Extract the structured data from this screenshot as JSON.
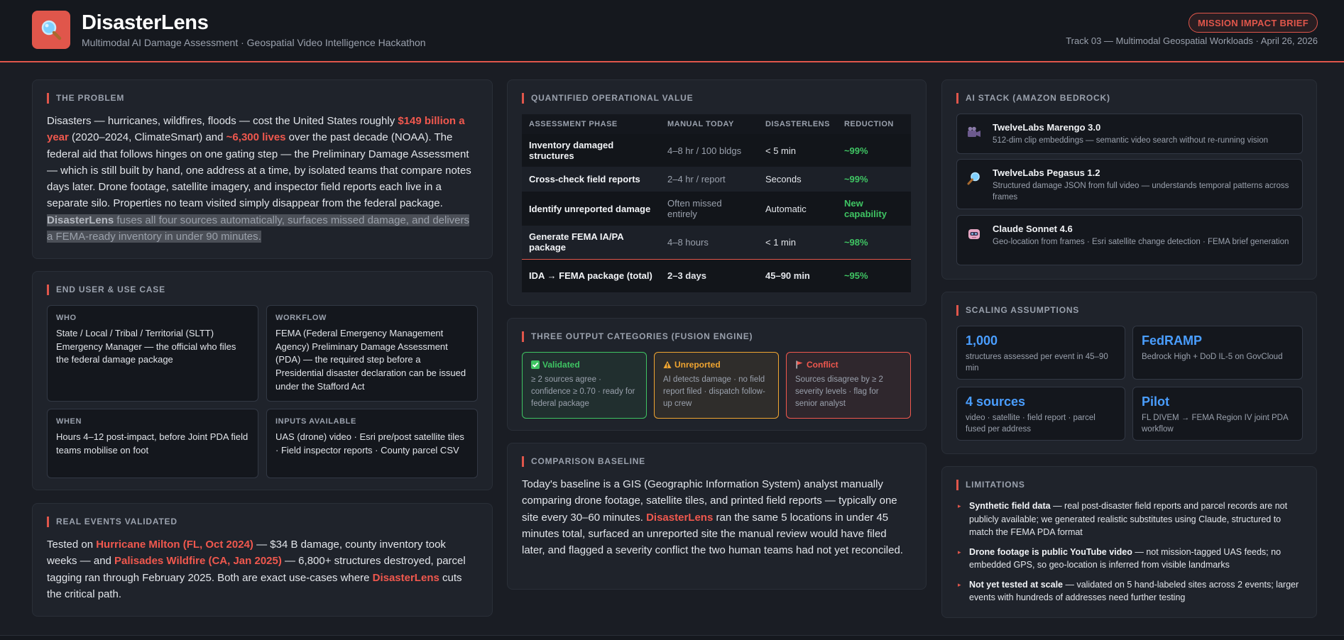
{
  "header": {
    "title": "DisasterLens",
    "subtitle": "Multimodal AI Damage Assessment · Geospatial Video Intelligence Hackathon",
    "badge": "MISSION IMPACT BRIEF",
    "track": "Track 03 — Multimodal Geospatial Workloads · April 26, 2026",
    "logo_icon": "magnifier-icon"
  },
  "problem": {
    "title": "THE PROBLEM",
    "p1": "Disasters — hurricanes, wildfires, floods — cost the United States roughly ",
    "h1": "$149 billion a year",
    "p2": " (2020–2024, ClimateSmart) and ",
    "h2": "~6,300 lives",
    "p3": " over the past decade (NOAA). The federal aid that follows hinges on one gating step — the Preliminary Damage Assessment — which is still built by hand, one address at a time, by isolated teams that compare notes days later. Drone footage, satellite imagery, and inspector field reports each live in a separate silo. Properties no team visited simply disappear from the federal package. ",
    "brand": "DisasterLens",
    "p4": " fuses all four sources automatically, surfaces missed damage, and delivers a FEMA-ready inventory in under 90 minutes."
  },
  "end_user": {
    "title": "END USER & USE CASE",
    "cards": [
      {
        "heading": "WHO",
        "text": "State / Local / Tribal / Territorial (SLTT) Emergency Manager — the official who files the federal damage package"
      },
      {
        "heading": "WORKFLOW",
        "text": "FEMA (Federal Emergency Management Agency) Preliminary Damage Assessment (PDA) — the required step before a Presidential disaster declaration can be issued under the Stafford Act"
      },
      {
        "heading": "WHEN",
        "text": "Hours 4–12 post-impact, before Joint PDA field teams mobilise on foot"
      },
      {
        "heading": "INPUTS AVAILABLE",
        "text": "UAS (drone) video · Esri pre/post satellite tiles · Field inspector reports · County parcel CSV"
      }
    ]
  },
  "real_events": {
    "title": "REAL EVENTS VALIDATED",
    "p1": "Tested on ",
    "h1": "Hurricane Milton (FL, Oct 2024)",
    "p2": " — $34 B damage, county inventory took weeks — and ",
    "h2": "Palisades Wildfire (CA, Jan 2025)",
    "p3": " — 6,800+ structures destroyed, parcel tagging ran through February 2025. Both are exact use-cases where ",
    "h3": "DisasterLens",
    "p4": " cuts the critical path."
  },
  "ops": {
    "title": "QUANTIFIED OPERATIONAL VALUE",
    "headers": [
      "ASSESSMENT PHASE",
      "MANUAL TODAY",
      "DISASTERLENS",
      "REDUCTION"
    ],
    "rows": [
      [
        "Inventory damaged structures",
        "4–8 hr / 100 bldgs",
        "< 5 min",
        "~99%"
      ],
      [
        "Cross-check field reports",
        "2–4 hr / report",
        "Seconds",
        "~99%"
      ],
      [
        "Identify unreported damage",
        "Often missed entirely",
        "Automatic",
        "New capability"
      ],
      [
        "Generate FEMA IA/PA package",
        "4–8 hours",
        "< 1 min",
        "~98%"
      ],
      [
        "IDA → FEMA package (total)",
        "2–3 days",
        "45–90 min",
        "~95%"
      ]
    ]
  },
  "outputs": {
    "title": "THREE OUTPUT CATEGORIES (FUSION ENGINE)",
    "items": [
      {
        "label": "Validated",
        "icon": "check-icon",
        "text": "≥ 2 sources agree · confidence ≥ 0.70 · ready for federal package",
        "color": "#3fc463"
      },
      {
        "label": "Unreported",
        "icon": "warning-icon",
        "text": "AI detects damage · no field report filed · dispatch follow-up crew",
        "color": "#f0a531"
      },
      {
        "label": "Conflict",
        "icon": "flag-icon",
        "text": "Sources disagree by ≥ 2 severity levels · flag for senior analyst",
        "color": "#f0584e"
      }
    ]
  },
  "baseline": {
    "title": "COMPARISON BASELINE",
    "p1": "Today's baseline is a GIS (Geographic Information System) analyst manually comparing drone footage, satellite tiles, and printed field reports — typically one site every 30–60 minutes. ",
    "h1": "DisasterLens",
    "p2": " ran the same 5 locations in under 45 minutes total, surfaced an unreported site the manual review would have filed later, and flagged a severity conflict the two human teams had not yet reconciled."
  },
  "ai_stack": {
    "title": "AI STACK (AMAZON BEDROCK)",
    "items": [
      {
        "name": "TwelveLabs Marengo 3.0",
        "desc": "512-dim clip embeddings — semantic video search without re-running vision",
        "icon": "video-camera-icon"
      },
      {
        "name": "TwelveLabs Pegasus 1.2",
        "desc": "Structured damage JSON from full video — understands temporal patterns across frames",
        "icon": "magnifier-icon"
      },
      {
        "name": "Claude Sonnet 4.6",
        "desc": "Geo-location from frames · Esri satellite change detection · FEMA brief generation",
        "icon": "robot-icon"
      }
    ]
  },
  "scaling": {
    "title": "SCALING ASSUMPTIONS",
    "items": [
      {
        "big": "1,000",
        "text": "structures assessed per event in 45–90 min"
      },
      {
        "big": "FedRAMP",
        "text": "Bedrock High + DoD IL-5 on GovCloud"
      },
      {
        "big": "4 sources",
        "text": "video · satellite · field report · parcel fused per address"
      },
      {
        "big": "Pilot",
        "text": "FL DIVEM → FEMA Region IV joint PDA workflow"
      }
    ]
  },
  "limitations": {
    "title": "LIMITATIONS",
    "items": [
      {
        "bold": "Synthetic field data",
        "text": " — real post-disaster field reports and parcel records are not publicly available; we generated realistic substitutes using Claude, structured to match the FEMA PDA format"
      },
      {
        "bold": "Drone footage is public YouTube video",
        "text": " — not mission-tagged UAS feeds; no embedded GPS, so geo-location is inferred from visible landmarks"
      },
      {
        "bold": "Not yet tested at scale",
        "text": " — validated on 5 hand-labeled sites across 2 events; larger events with hundreds of addresses need further testing"
      }
    ]
  },
  "colors": {
    "accent": "#e0564b",
    "green": "#3fc463",
    "amber": "#f0a531",
    "blue": "#4a9eff"
  }
}
